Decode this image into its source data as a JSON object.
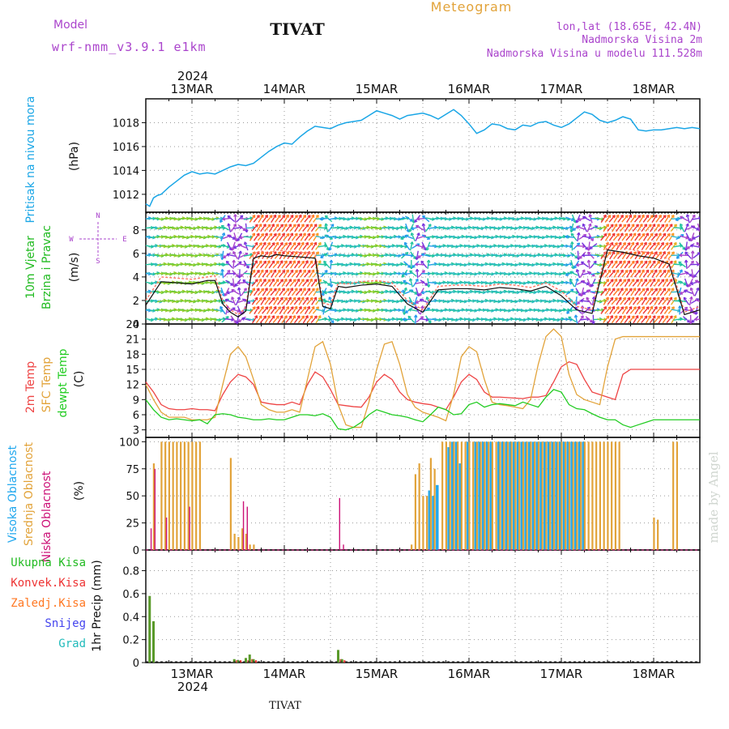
{
  "header": {
    "model_label": "Model",
    "model_name": "wrf-nmm_v3.9.1 e1km",
    "station": "TIVAT",
    "product": "Meteogram",
    "lonlat": "lon,lat (18.65E, 42.4N)",
    "altitude": "Nadmorska Visina 2m",
    "model_altitude": "Nadmorska Visina u modelu 111.528m"
  },
  "footer": {
    "station": "TIVAT",
    "watermark": "made by Angel"
  },
  "colors": {
    "pressure": "#1aa6e6",
    "mslp_label": "#1aa6e6",
    "temp2m": "#ee4444",
    "sfc": "#e2a33a",
    "dewpt": "#22cc22",
    "high_cloud": "#22a8ee",
    "mid_cloud": "#e2a33a",
    "low_cloud": "#cc1177",
    "total_precip": "#22bb22",
    "conv_precip": "#ee3333",
    "frz_precip": "#ff7722",
    "snow": "#4444ee",
    "graupel": "#22bbbb",
    "wind_label": "#22bb22",
    "wind_purple": "#aa44cc"
  },
  "time_axis": {
    "top_year": "2024",
    "bottom_year": "2024",
    "days": [
      "13MAR",
      "14MAR",
      "15MAR",
      "16MAR",
      "17MAR",
      "18MAR"
    ]
  },
  "chart_data": [
    {
      "type": "line",
      "panel": "pressure",
      "ylabel_name": "Pritisak na nivou mora",
      "ylabel_unit": "(hPa)",
      "ylim": [
        1010.5,
        1020
      ],
      "yticks": [
        1012,
        1014,
        1016,
        1018
      ],
      "xlim": [
        0,
        144
      ],
      "grid": true,
      "x": [
        0,
        1,
        2,
        3,
        4,
        6,
        8,
        10,
        12,
        14,
        16,
        18,
        20,
        22,
        24,
        26,
        28,
        30,
        32,
        34,
        36,
        38,
        40,
        42,
        44,
        46,
        48,
        50,
        52,
        54,
        56,
        58,
        60,
        62,
        64,
        66,
        68,
        70,
        72,
        74,
        76,
        78,
        80,
        82,
        84,
        86,
        88,
        90,
        92,
        94,
        96,
        98,
        100,
        102,
        104,
        106,
        108,
        110,
        112,
        114,
        116,
        118,
        120,
        122,
        124,
        126,
        128,
        130,
        132,
        134,
        136,
        138,
        140,
        142,
        144
      ],
      "series": [
        {
          "values": [
            1011.2,
            1011.0,
            1011.7,
            1011.9,
            1012.0,
            1012.6,
            1013.1,
            1013.6,
            1013.9,
            1013.7,
            1013.8,
            1013.7,
            1014.0,
            1014.3,
            1014.5,
            1014.4,
            1014.6,
            1015.1,
            1015.6,
            1016.0,
            1016.3,
            1016.2,
            1016.8,
            1017.3,
            1017.7,
            1017.6,
            1017.5,
            1017.8,
            1018.0,
            1018.1,
            1018.2,
            1018.6,
            1019.0,
            1018.8,
            1018.6,
            1018.3,
            1018.6,
            1018.7,
            1018.8,
            1018.6,
            1018.3,
            1018.7,
            1019.1,
            1018.6,
            1017.9,
            1017.1,
            1017.4,
            1017.9,
            1017.8,
            1017.5,
            1017.4,
            1017.8,
            1017.7,
            1018.0,
            1018.1,
            1017.8,
            1017.6,
            1017.9,
            1018.4,
            1018.9,
            1018.7,
            1018.2,
            1018.0,
            1018.2,
            1018.5,
            1018.3,
            1017.4,
            1017.3,
            1017.4,
            1017.4,
            1017.5,
            1017.6,
            1017.5,
            1017.6,
            1017.5
          ]
        }
      ]
    },
    {
      "type": "line",
      "panel": "wind",
      "ylabel_name1": "10m Vjetar",
      "ylabel_name2": "Brzina i Pravac",
      "ylabel_unit": "(m/s)",
      "compass": "N, E, S, W",
      "ylim": [
        0,
        9.5
      ],
      "yticks": [
        0,
        2,
        4,
        6,
        8
      ],
      "xlim": [
        0,
        144
      ],
      "x": [
        0,
        4,
        8,
        12,
        16,
        18,
        20,
        22,
        24,
        26,
        28,
        30,
        32,
        34,
        36,
        40,
        44,
        46,
        48,
        50,
        52,
        56,
        60,
        64,
        68,
        72,
        76,
        80,
        84,
        88,
        92,
        96,
        100,
        104,
        108,
        112,
        116,
        120,
        124,
        128,
        132,
        136,
        140,
        144
      ],
      "series": [
        {
          "values": [
            2.0,
            4.0,
            3.9,
            3.8,
            4.0,
            4.1,
            2.0,
            1.2,
            0.8,
            1.4,
            6.0,
            6.2,
            6.0,
            6.3,
            6.2,
            6.1,
            6.0,
            1.8,
            1.6,
            3.5,
            3.4,
            3.6,
            3.7,
            3.5,
            2.0,
            1.2,
            3.2,
            3.3,
            3.3,
            3.2,
            3.4,
            3.3,
            3.1,
            3.5,
            2.8,
            1.5,
            1.2,
            6.8,
            6.5,
            6.2,
            6.0,
            5.5,
            1.0,
            1.5
          ]
        },
        {
          "values": [
            1.6,
            3.6,
            3.5,
            3.4,
            3.7,
            3.7,
            1.7,
            1.0,
            0.6,
            1.1,
            5.6,
            5.8,
            5.7,
            5.9,
            5.8,
            5.7,
            5.6,
            1.5,
            1.3,
            3.2,
            3.1,
            3.3,
            3.4,
            3.2,
            1.7,
            1.0,
            2.9,
            3.0,
            3.0,
            2.9,
            3.1,
            3.0,
            2.8,
            3.2,
            2.4,
            1.2,
            0.9,
            6.3,
            6.1,
            5.8,
            5.6,
            5.1,
            0.8,
            1.2
          ]
        }
      ]
    },
    {
      "type": "line",
      "panel": "temperature",
      "ylabel_name1": "2m Temp",
      "ylabel_name2": "SFC Temp",
      "ylabel_name3": "dewpt Temp",
      "ylabel_unit": "(C)",
      "ylim": [
        1.5,
        24
      ],
      "yticks": [
        3,
        6,
        9,
        12,
        15,
        18,
        21,
        24
      ],
      "xlim": [
        0,
        144
      ],
      "x": [
        0,
        2,
        4,
        6,
        8,
        10,
        12,
        14,
        16,
        18,
        20,
        22,
        24,
        26,
        28,
        30,
        32,
        34,
        36,
        38,
        40,
        42,
        44,
        46,
        48,
        50,
        52,
        54,
        56,
        58,
        60,
        62,
        64,
        66,
        68,
        70,
        72,
        74,
        76,
        78,
        80,
        82,
        84,
        86,
        88,
        90,
        92,
        94,
        96,
        98,
        100,
        102,
        104,
        106,
        108,
        110,
        112,
        114,
        116,
        118,
        120,
        122,
        124,
        126,
        128,
        130,
        132,
        134,
        136,
        138,
        140,
        142,
        144
      ],
      "series": [
        {
          "values": [
            12.5,
            10.5,
            8.0,
            7.2,
            7.0,
            7.0,
            7.2,
            7.0,
            7.0,
            6.8,
            10.0,
            12.5,
            14.0,
            13.5,
            12.0,
            8.5,
            8.2,
            8.0,
            8.0,
            8.5,
            8.0,
            12.0,
            14.5,
            13.5,
            11.0,
            8.0,
            7.8,
            7.6,
            7.5,
            9.5,
            12.5,
            14.0,
            13.0,
            10.5,
            9.0,
            8.5,
            8.2,
            8.0,
            7.5,
            7.0,
            9.5,
            12.5,
            14.0,
            13.0,
            10.5,
            9.5,
            9.5,
            9.4,
            9.3,
            9.2,
            9.5,
            9.5,
            9.8,
            12.5,
            15.5,
            16.5,
            16.0,
            13.0,
            10.5,
            10.0,
            9.5,
            9.0,
            14.0,
            15.0,
            15.0,
            15.0,
            15.0,
            15.0,
            15.0,
            15.0,
            15.0,
            15.0,
            15.0
          ]
        },
        {
          "values": [
            12.0,
            9.0,
            6.5,
            5.5,
            5.5,
            5.5,
            5.0,
            5.0,
            5.0,
            5.5,
            12.0,
            18.0,
            19.5,
            17.5,
            13.0,
            8.0,
            7.0,
            6.5,
            6.5,
            7.0,
            6.5,
            13.0,
            19.5,
            20.5,
            16.0,
            8.0,
            4.0,
            3.5,
            3.5,
            8.5,
            15.0,
            20.0,
            20.5,
            16.0,
            10.0,
            7.5,
            6.5,
            6.0,
            5.5,
            4.8,
            10.0,
            17.5,
            19.5,
            18.5,
            13.0,
            8.5,
            8.0,
            7.8,
            7.5,
            7.2,
            9.0,
            16.0,
            21.5,
            23.0,
            21.5,
            14.0,
            10.0,
            9.0,
            8.5,
            8.0,
            15.5,
            21.0,
            21.5,
            21.5,
            21.5,
            21.5,
            21.5,
            21.5,
            21.5,
            21.5,
            21.5,
            21.5,
            21.5
          ]
        },
        {
          "values": [
            9.0,
            7.0,
            5.5,
            5.0,
            5.2,
            5.0,
            4.8,
            5.0,
            4.2,
            6.0,
            6.2,
            6.0,
            5.5,
            5.3,
            5.0,
            5.0,
            5.2,
            5.0,
            5.0,
            5.5,
            6.0,
            6.0,
            5.8,
            6.2,
            5.5,
            3.2,
            3.0,
            3.5,
            4.5,
            6.0,
            7.0,
            6.5,
            6.0,
            5.8,
            5.5,
            5.0,
            4.6,
            6.0,
            7.5,
            7.0,
            6.0,
            6.2,
            8.0,
            8.5,
            7.5,
            8.0,
            8.2,
            8.0,
            7.8,
            8.5,
            8.0,
            7.5,
            9.5,
            11.0,
            10.5,
            8.0,
            7.2,
            7.0,
            6.2,
            5.5,
            5.0,
            5.0,
            4.0,
            3.5,
            4.0,
            4.5,
            5.0,
            5.0,
            5.0,
            5.0,
            5.0,
            5.0,
            5.0
          ]
        }
      ]
    },
    {
      "type": "bar",
      "panel": "cloud",
      "ylabel_name1": "Visoka Oblacnost",
      "ylabel_name2": "Srednja Oblacnost",
      "ylabel_name3": "Niska Oblacnost",
      "ylabel_unit": "(%)",
      "ylim": [
        0,
        104
      ],
      "yticks": [
        0,
        25,
        50,
        75,
        100
      ],
      "xlim": [
        0,
        144
      ],
      "x": [
        1,
        2,
        3,
        4,
        5,
        6,
        7,
        8,
        9,
        10,
        11,
        12,
        13,
        14,
        15,
        16,
        22,
        23,
        24,
        25,
        26,
        27,
        28,
        50,
        51,
        69,
        70,
        71,
        72,
        73,
        74,
        75,
        76,
        77,
        78,
        79,
        80,
        81,
        82,
        83,
        84,
        85,
        86,
        87,
        88,
        89,
        90,
        91,
        92,
        93,
        94,
        95,
        96,
        97,
        98,
        99,
        100,
        101,
        102,
        103,
        104,
        105,
        106,
        107,
        108,
        109,
        110,
        111,
        112,
        113,
        114,
        115,
        116,
        117,
        118,
        119,
        120,
        121,
        122,
        123,
        132,
        133,
        137,
        138
      ],
      "series": [
        {
          "values": [
            0,
            0,
            0,
            0,
            0,
            0,
            0,
            0,
            0,
            0,
            0,
            0,
            0,
            0,
            0,
            0,
            0,
            0,
            0,
            0,
            0,
            0,
            0,
            0,
            0,
            0,
            0,
            0,
            0,
            0,
            55,
            50,
            60,
            0,
            0,
            95,
            100,
            100,
            80,
            0,
            100,
            0,
            100,
            100,
            100,
            100,
            100,
            0,
            100,
            100,
            100,
            100,
            100,
            100,
            100,
            100,
            100,
            100,
            100,
            100,
            100,
            100,
            100,
            100,
            100,
            100,
            100,
            100,
            100,
            100,
            100,
            0,
            0,
            0,
            0,
            0,
            0,
            0,
            0,
            0,
            0,
            0,
            0,
            0
          ]
        },
        {
          "values": [
            0,
            80,
            0,
            100,
            100,
            100,
            100,
            100,
            100,
            100,
            100,
            100,
            100,
            100,
            0,
            0,
            85,
            15,
            12,
            20,
            15,
            5,
            5,
            0,
            0,
            5,
            70,
            80,
            50,
            50,
            85,
            75,
            0,
            100,
            100,
            100,
            100,
            100,
            100,
            100,
            100,
            100,
            100,
            100,
            100,
            100,
            100,
            100,
            100,
            100,
            100,
            100,
            100,
            100,
            100,
            100,
            100,
            100,
            100,
            100,
            100,
            100,
            100,
            100,
            100,
            100,
            100,
            100,
            100,
            100,
            100,
            100,
            100,
            100,
            100,
            100,
            100,
            100,
            100,
            100,
            30,
            28,
            100,
            100
          ]
        },
        {
          "values": [
            20,
            75,
            0,
            0,
            30,
            0,
            0,
            0,
            0,
            0,
            40,
            0,
            0,
            0,
            0,
            0,
            0,
            0,
            0,
            45,
            40,
            0,
            0,
            48,
            5,
            0,
            0,
            0,
            0,
            0,
            0,
            0,
            0,
            0,
            0,
            0,
            0,
            0,
            0,
            0,
            0,
            0,
            0,
            0,
            0,
            0,
            0,
            0,
            0,
            0,
            0,
            0,
            0,
            0,
            0,
            0,
            0,
            0,
            0,
            0,
            0,
            0,
            0,
            0,
            0,
            0,
            0,
            0,
            0,
            0,
            0,
            0,
            0,
            0,
            0,
            0,
            0,
            0,
            0,
            0,
            0,
            0,
            0,
            0
          ]
        }
      ]
    },
    {
      "type": "bar",
      "panel": "precipitation",
      "ylabel": "1hr Precip (mm)",
      "legend": [
        "Ukupna Kisa",
        "Konvek.Kisa",
        "Zaledj.Kisa",
        "Snijeg",
        "Grad"
      ],
      "ylim": [
        0,
        0.98
      ],
      "yticks": [
        0,
        0.2,
        0.4,
        0.6,
        0.8
      ],
      "xlim": [
        0,
        144
      ],
      "x": [
        1,
        2,
        23,
        24,
        26,
        27,
        28,
        50,
        51
      ],
      "series": [
        {
          "values": [
            0.58,
            0.36,
            0.03,
            0.02,
            0.04,
            0.07,
            0.03,
            0.11,
            0.03
          ]
        },
        {
          "values": [
            0.0,
            0.0,
            0.02,
            0.02,
            0.02,
            0.03,
            0.02,
            0.03,
            0.02
          ]
        }
      ]
    }
  ]
}
